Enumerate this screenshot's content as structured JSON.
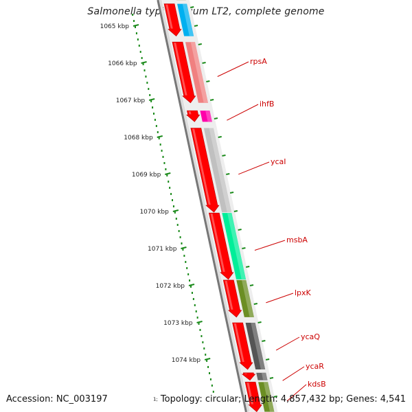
{
  "title": "Salmonella typhimurium LT2, complete genome",
  "accession": "Accession: NC_003197",
  "topology": "Topology: circular; Length: 4,857,432 bp; Genes: 4,541",
  "footer_fragment": "1;",
  "colors": {
    "cds_red": "#ff0000",
    "backbone": "#777777",
    "ruler_green": "#1a8a1a",
    "label_red": "#cc0000"
  },
  "scale_ticks": [
    {
      "kbp": 1065,
      "label": "1065 kbp"
    },
    {
      "kbp": 1066,
      "label": "1066 kbp"
    },
    {
      "kbp": 1067,
      "label": "1067 kbp"
    },
    {
      "kbp": 1068,
      "label": "1068 kbp"
    },
    {
      "kbp": 1069,
      "label": "1069 kbp"
    },
    {
      "kbp": 1070,
      "label": "1070 kbp"
    },
    {
      "kbp": 1071,
      "label": "1071 kbp"
    },
    {
      "kbp": 1072,
      "label": "1072 kbp"
    },
    {
      "kbp": 1073,
      "label": "1073 kbp"
    },
    {
      "kbp": 1074,
      "label": "1074 kbp"
    }
  ],
  "genes": [
    {
      "name": "",
      "start": 1064.4,
      "end": 1065.27,
      "color": "#00b0f0"
    },
    {
      "name": "rpsA",
      "start": 1065.43,
      "end": 1067.07,
      "color": "#f08080"
    },
    {
      "name": "ihfB",
      "start": 1067.28,
      "end": 1067.58,
      "color": "#ff00aa"
    },
    {
      "name": "ycaI",
      "start": 1067.75,
      "end": 1070.02,
      "color": "#c0c0c0"
    },
    {
      "name": "msbA",
      "start": 1070.04,
      "end": 1071.83,
      "color": "#00ee99"
    },
    {
      "name": "lpxK",
      "start": 1071.85,
      "end": 1072.85,
      "color": "#6b8e23"
    },
    {
      "name": "ycaQ",
      "start": 1073.0,
      "end": 1074.26,
      "color": "#555555"
    },
    {
      "name": "ycaR",
      "start": 1074.35,
      "end": 1074.55,
      "color": "#666666"
    },
    {
      "name": "kdsB",
      "start": 1074.6,
      "end": 1075.4,
      "color": "#6b8e23"
    }
  ]
}
